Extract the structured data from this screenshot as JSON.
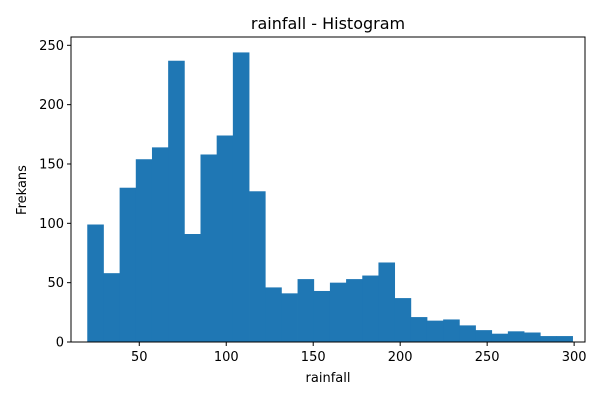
{
  "chart_data": {
    "type": "bar",
    "title": "rainfall - Histogram",
    "xlabel": "rainfall",
    "ylabel": "Frekans",
    "xlim": [
      10.75,
      306.25
    ],
    "ylim": [
      0,
      257
    ],
    "xticks": [
      50,
      100,
      150,
      200,
      250,
      300
    ],
    "yticks": [
      0,
      50,
      100,
      150,
      200,
      250
    ],
    "grid": false,
    "legend": "none",
    "bar_color": "#1f77b4",
    "bins": {
      "start": 20.1,
      "width": 9.3,
      "counts": [
        99,
        58,
        130,
        154,
        164,
        237,
        91,
        158,
        174,
        244,
        127,
        46,
        41,
        53,
        43,
        50,
        53,
        56,
        67,
        37,
        21,
        18,
        19,
        14,
        10,
        7,
        9,
        8,
        5,
        5
      ]
    }
  }
}
